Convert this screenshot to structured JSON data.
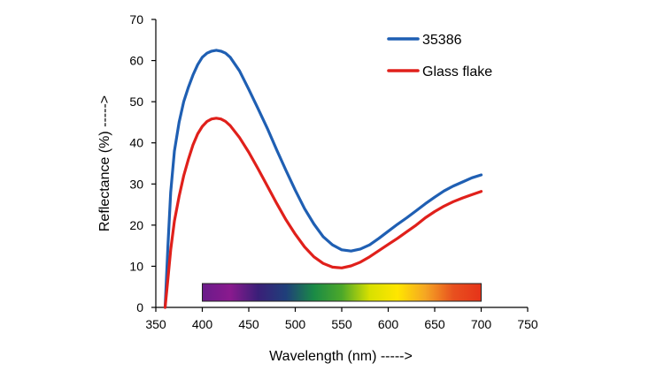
{
  "chart_data": {
    "type": "line",
    "xlabel": "Wavelength (nm) ----->",
    "ylabel": "Reflectance (%) ----->",
    "xlim": [
      350,
      750
    ],
    "ylim": [
      0,
      70
    ],
    "x_ticks": [
      350,
      400,
      450,
      500,
      550,
      600,
      650,
      700,
      750
    ],
    "y_ticks": [
      0,
      10,
      20,
      30,
      40,
      50,
      60,
      70
    ],
    "grid": false,
    "legend_position": "top-right",
    "series": [
      {
        "name": "35386",
        "color": "#1f5fb3",
        "x": [
          360,
          363,
          366,
          370,
          375,
          380,
          385,
          390,
          395,
          400,
          405,
          410,
          415,
          420,
          425,
          430,
          440,
          450,
          460,
          470,
          480,
          490,
          500,
          510,
          520,
          530,
          540,
          550,
          560,
          570,
          580,
          590,
          600,
          610,
          620,
          630,
          640,
          650,
          660,
          670,
          680,
          690,
          700
        ],
        "y": [
          0,
          15,
          28,
          38,
          45,
          50,
          53.5,
          56.5,
          59,
          60.8,
          61.8,
          62.3,
          62.5,
          62.3,
          61.8,
          60.8,
          57.5,
          53,
          48.3,
          43.5,
          38.3,
          33.3,
          28.5,
          24,
          20.3,
          17.2,
          15.2,
          14,
          13.7,
          14.2,
          15.2,
          16.8,
          18.5,
          20.2,
          21.8,
          23.5,
          25.2,
          26.8,
          28.3,
          29.5,
          30.5,
          31.5,
          32.2
        ]
      },
      {
        "name": "Glass flake",
        "color": "#e0201b",
        "x": [
          360,
          363,
          366,
          370,
          375,
          380,
          385,
          390,
          395,
          400,
          405,
          410,
          415,
          420,
          425,
          430,
          440,
          450,
          460,
          470,
          480,
          490,
          500,
          510,
          520,
          530,
          540,
          550,
          560,
          570,
          580,
          590,
          600,
          610,
          620,
          630,
          640,
          650,
          660,
          670,
          680,
          690,
          700
        ],
        "y": [
          0,
          7,
          14,
          21,
          27,
          32,
          36,
          39.5,
          42.2,
          44,
          45.2,
          45.8,
          46,
          45.8,
          45.2,
          44.2,
          41.3,
          37.7,
          33.7,
          29.5,
          25.3,
          21.3,
          17.8,
          14.7,
          12.3,
          10.7,
          9.8,
          9.6,
          10.1,
          11,
          12.3,
          13.8,
          15.3,
          16.8,
          18.4,
          20,
          21.8,
          23.3,
          24.6,
          25.7,
          26.6,
          27.4,
          28.2
        ]
      }
    ],
    "spectrum_bar": {
      "x_range": [
        400,
        700
      ],
      "colors": [
        "#6a1b8a",
        "#8a1a8e",
        "#3a1f78",
        "#1f3f7a",
        "#1a8a46",
        "#4ca82a",
        "#d8e000",
        "#ffe600",
        "#f5a623",
        "#e8501f",
        "#e63319"
      ]
    }
  }
}
